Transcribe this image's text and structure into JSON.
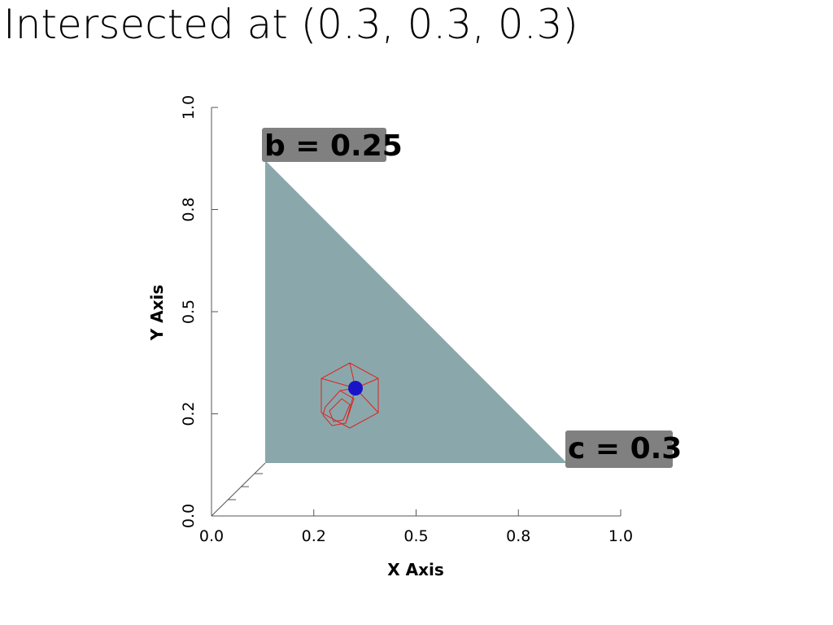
{
  "title": "Intersected at (0.3, 0.3, 0.3)",
  "axes": {
    "x_title": "X Axis",
    "y_title": "Y Axis",
    "x_ticks": [
      "0.0",
      "0.2",
      "0.5",
      "0.8",
      "1.0"
    ],
    "y_ticks": [
      "0.0",
      "0.2",
      "0.5",
      "0.8",
      "1.0"
    ]
  },
  "labels": [
    "b = 0.25",
    "c = 0.3"
  ]
}
